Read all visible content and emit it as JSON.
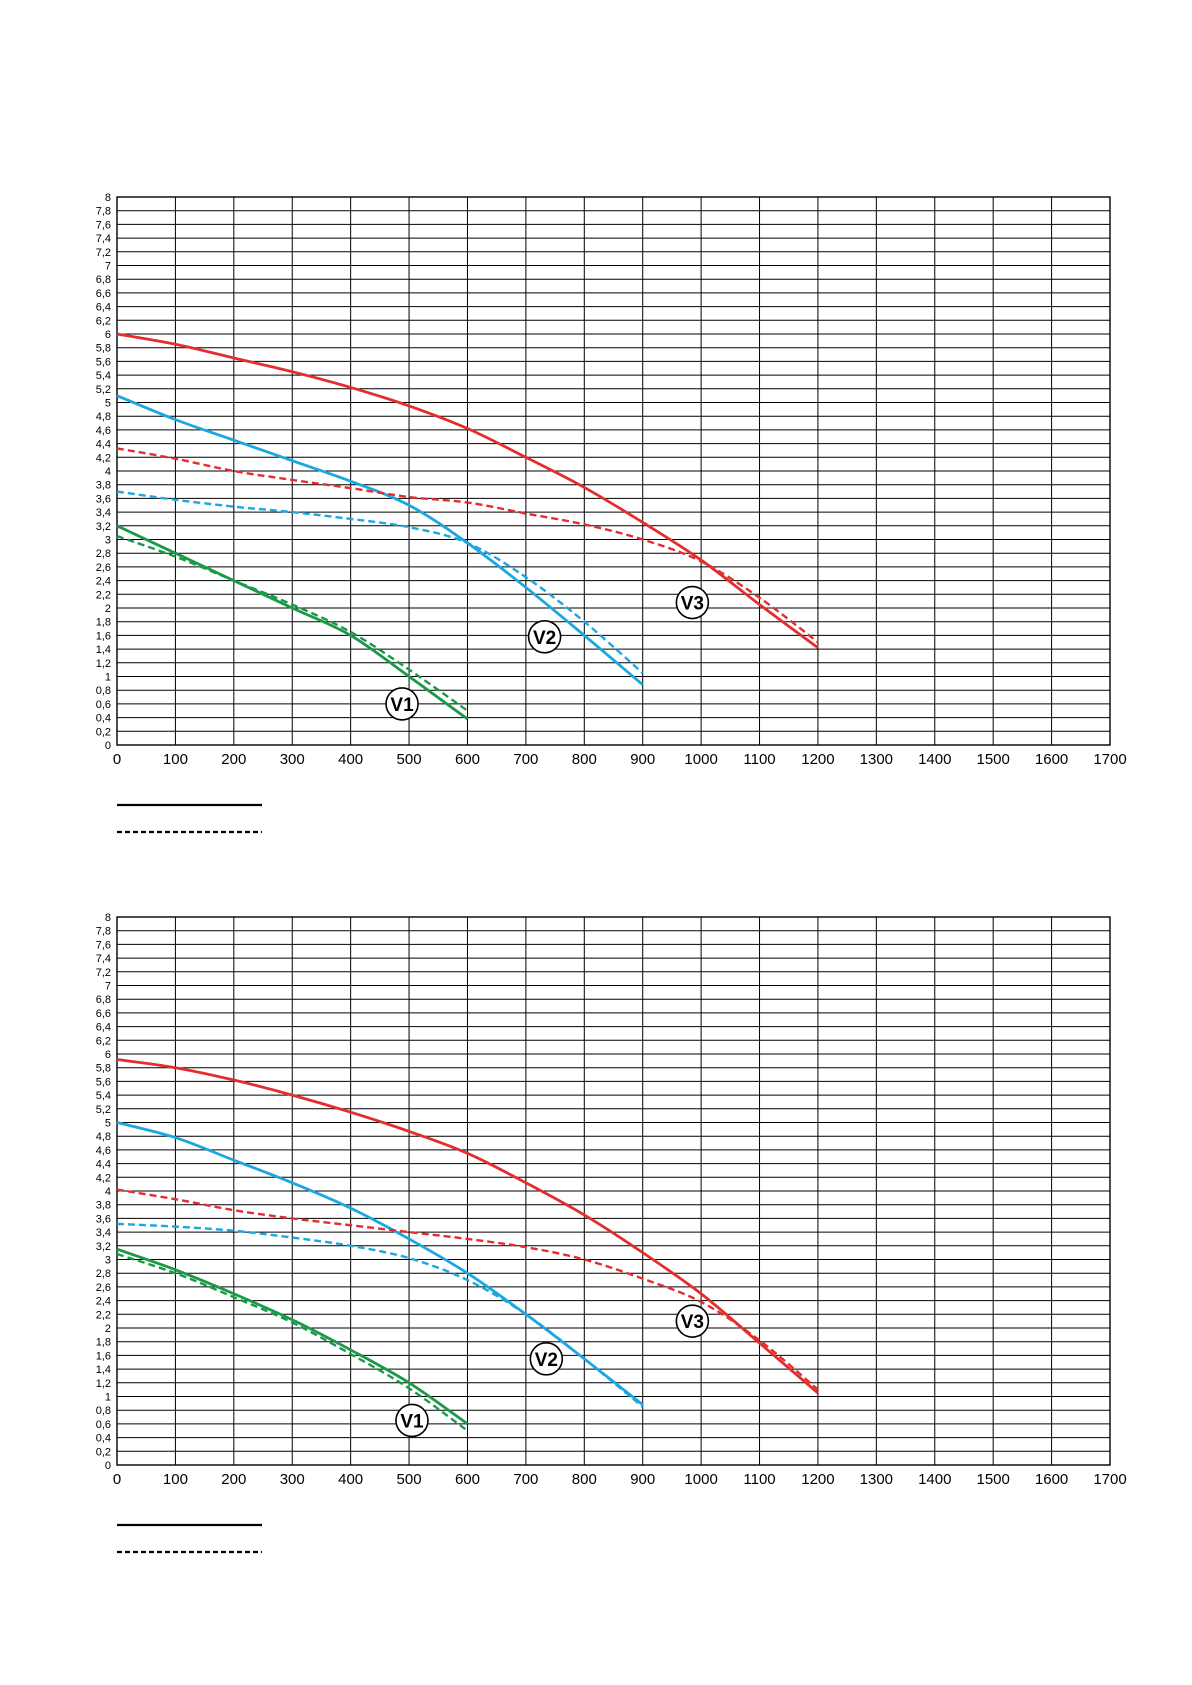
{
  "chart_data": [
    {
      "type": "line",
      "xlim": [
        0,
        1700
      ],
      "ylim": [
        0,
        8
      ],
      "x_ticks": [
        "0",
        "100",
        "200",
        "300",
        "400",
        "500",
        "600",
        "700",
        "800",
        "900",
        "1000",
        "1100",
        "1200",
        "1300",
        "1400",
        "1500",
        "1600",
        "1700"
      ],
      "y_ticks": [
        "0",
        "0,2",
        "0,4",
        "0,6",
        "0,8",
        "1",
        "1,2",
        "1,4",
        "1,6",
        "1,8",
        "2",
        "2,2",
        "2,4",
        "2,6",
        "2,8",
        "3",
        "3,2",
        "3,4",
        "3,6",
        "3,8",
        "4",
        "4,2",
        "4,4",
        "4,6",
        "4,8",
        "5",
        "5,2",
        "5,4",
        "5,6",
        "5,8",
        "6",
        "6,2",
        "6,4",
        "6,6",
        "6,8",
        "7",
        "7,2",
        "7,4",
        "7,6",
        "7,8",
        "8"
      ],
      "grid": true,
      "legend": [
        {
          "style": "solid"
        },
        {
          "style": "dashed"
        }
      ],
      "callouts": [
        {
          "label": "V1",
          "x": 488,
          "y": 0.6
        },
        {
          "label": "V2",
          "x": 732,
          "y": 1.58
        },
        {
          "label": "V3",
          "x": 985,
          "y": 2.08
        }
      ],
      "series": [
        {
          "label": "V1",
          "style": "solid",
          "color": "#1a9a48",
          "x": [
            0,
            100,
            200,
            300,
            400,
            500,
            600
          ],
          "y": [
            3.2,
            2.8,
            2.4,
            2.0,
            1.6,
            1.0,
            0.38
          ]
        },
        {
          "label": "V1",
          "style": "dashed",
          "color": "#1a9a48",
          "x": [
            0,
            100,
            200,
            300,
            400,
            500,
            600
          ],
          "y": [
            3.05,
            2.75,
            2.4,
            2.05,
            1.65,
            1.1,
            0.5
          ]
        },
        {
          "label": "V2",
          "style": "solid",
          "color": "#1ba7e0",
          "x": [
            0,
            100,
            200,
            300,
            400,
            500,
            600,
            700,
            800,
            900
          ],
          "y": [
            5.1,
            4.75,
            4.45,
            4.15,
            3.85,
            3.5,
            2.95,
            2.3,
            1.6,
            0.88
          ]
        },
        {
          "label": "V2",
          "style": "dashed",
          "color": "#1ba7e0",
          "x": [
            0,
            100,
            200,
            300,
            400,
            500,
            600,
            700,
            800,
            900
          ],
          "y": [
            3.7,
            3.58,
            3.48,
            3.4,
            3.3,
            3.18,
            2.95,
            2.45,
            1.8,
            1.05
          ]
        },
        {
          "label": "V3",
          "style": "solid",
          "color": "#e42d2d",
          "x": [
            0,
            100,
            200,
            300,
            400,
            500,
            600,
            700,
            800,
            900,
            1000,
            1100,
            1200
          ],
          "y": [
            6.0,
            5.85,
            5.65,
            5.45,
            5.22,
            4.95,
            4.62,
            4.2,
            3.76,
            3.25,
            2.7,
            2.05,
            1.42
          ]
        },
        {
          "label": "V3",
          "style": "dashed",
          "color": "#e42d2d",
          "x": [
            0,
            100,
            200,
            300,
            400,
            500,
            600,
            700,
            800,
            900,
            1000,
            1100,
            1200
          ],
          "y": [
            4.33,
            4.18,
            4.0,
            3.87,
            3.75,
            3.62,
            3.54,
            3.38,
            3.22,
            3.0,
            2.68,
            2.15,
            1.5
          ]
        }
      ]
    },
    {
      "type": "line",
      "xlim": [
        0,
        1700
      ],
      "ylim": [
        0,
        8
      ],
      "x_ticks": [
        "0",
        "100",
        "200",
        "300",
        "400",
        "500",
        "600",
        "700",
        "800",
        "900",
        "1000",
        "1100",
        "1200",
        "1300",
        "1400",
        "1500",
        "1600",
        "1700"
      ],
      "y_ticks": [
        "0",
        "0,2",
        "0,4",
        "0,6",
        "0,8",
        "1",
        "1,2",
        "1,4",
        "1,6",
        "1,8",
        "2",
        "2,2",
        "2,4",
        "2,6",
        "2,8",
        "3",
        "3,2",
        "3,4",
        "3,6",
        "3,8",
        "4",
        "4,2",
        "4,4",
        "4,6",
        "4,8",
        "5",
        "5,2",
        "5,4",
        "5,6",
        "5,8",
        "6",
        "6,2",
        "6,4",
        "6,6",
        "6,8",
        "7",
        "7,2",
        "7,4",
        "7,6",
        "7,8",
        "8"
      ],
      "grid": true,
      "legend": [
        {
          "style": "solid"
        },
        {
          "style": "dashed"
        }
      ],
      "callouts": [
        {
          "label": "V1",
          "x": 505,
          "y": 0.65
        },
        {
          "label": "V2",
          "x": 735,
          "y": 1.55
        },
        {
          "label": "V3",
          "x": 985,
          "y": 2.1
        }
      ],
      "series": [
        {
          "label": "V1",
          "style": "solid",
          "color": "#1a9a48",
          "x": [
            0,
            100,
            200,
            300,
            400,
            500,
            600
          ],
          "y": [
            3.15,
            2.85,
            2.5,
            2.12,
            1.68,
            1.2,
            0.6
          ]
        },
        {
          "label": "V1",
          "style": "dashed",
          "color": "#1a9a48",
          "x": [
            0,
            100,
            200,
            300,
            400,
            500,
            600
          ],
          "y": [
            3.08,
            2.8,
            2.45,
            2.08,
            1.62,
            1.12,
            0.5
          ]
        },
        {
          "label": "V2",
          "style": "solid",
          "color": "#1ba7e0",
          "x": [
            0,
            100,
            200,
            300,
            400,
            500,
            600,
            700,
            800,
            900
          ],
          "y": [
            5.0,
            4.78,
            4.45,
            4.12,
            3.75,
            3.3,
            2.8,
            2.2,
            1.55,
            0.88
          ]
        },
        {
          "label": "V2",
          "style": "dashed",
          "color": "#1ba7e0",
          "x": [
            0,
            100,
            200,
            300,
            400,
            500,
            600,
            700,
            800,
            900
          ],
          "y": [
            3.52,
            3.48,
            3.42,
            3.32,
            3.2,
            3.02,
            2.7,
            2.2,
            1.55,
            0.85
          ]
        },
        {
          "label": "V3",
          "style": "solid",
          "color": "#e42d2d",
          "x": [
            0,
            100,
            200,
            300,
            400,
            500,
            600,
            700,
            800,
            900,
            1000,
            1100,
            1200
          ],
          "y": [
            5.92,
            5.8,
            5.62,
            5.4,
            5.15,
            4.87,
            4.55,
            4.12,
            3.65,
            3.1,
            2.5,
            1.78,
            1.05
          ]
        },
        {
          "label": "V3",
          "style": "dashed",
          "color": "#e42d2d",
          "x": [
            0,
            100,
            200,
            300,
            400,
            500,
            600,
            700,
            800,
            900,
            1000,
            1100,
            1200
          ],
          "y": [
            4.02,
            3.88,
            3.72,
            3.6,
            3.5,
            3.4,
            3.3,
            3.18,
            3.0,
            2.72,
            2.38,
            1.82,
            1.1
          ]
        }
      ]
    }
  ]
}
